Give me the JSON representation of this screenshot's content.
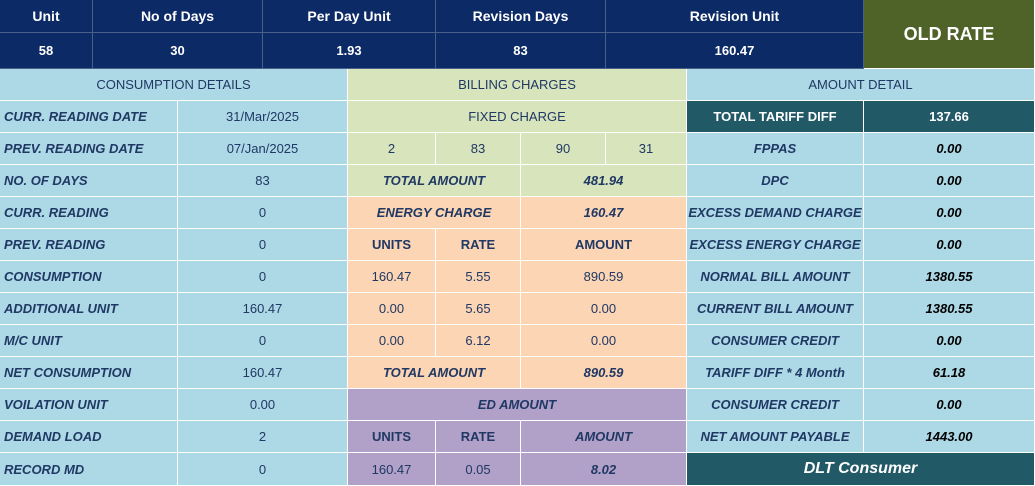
{
  "header": {
    "unit_label": "Unit",
    "no_of_days_label": "No of Days",
    "per_day_unit_label": "Per Day Unit",
    "revision_days_label": "Revision Days",
    "revision_unit_label": "Revision Unit",
    "unit": "58",
    "no_of_days": "30",
    "per_day_unit": "1.93",
    "revision_days": "83",
    "revision_unit": "160.47",
    "old_rate": "OLD RATE"
  },
  "consumption": {
    "title": "CONSUMPTION DETAILS",
    "rows": [
      {
        "label": "CURR. READING DATE",
        "value": "31/Mar/2025"
      },
      {
        "label": "PREV. READING DATE",
        "value": "07/Jan/2025"
      },
      {
        "label": "NO. OF DAYS",
        "value": "83"
      },
      {
        "label": "CURR. READING",
        "value": "0"
      },
      {
        "label": "PREV. READING",
        "value": "0"
      },
      {
        "label": "CONSUMPTION",
        "value": "0"
      },
      {
        "label": "ADDITIONAL UNIT",
        "value": "160.47"
      },
      {
        "label": "M/C UNIT",
        "value": "0"
      },
      {
        "label": "NET CONSUMPTION",
        "value": "160.47"
      },
      {
        "label": "VOILATION UNIT",
        "value": "0.00"
      },
      {
        "label": "DEMAND LOAD",
        "value": "2"
      },
      {
        "label": "RECORD MD",
        "value": "0"
      }
    ]
  },
  "billing": {
    "title": "BILLING CHARGES",
    "fixed_charge_label": "FIXED CHARGE",
    "fixed_values": [
      "2",
      "83",
      "90",
      "31"
    ],
    "fixed_total_label": "TOTAL AMOUNT",
    "fixed_total": "481.94",
    "energy_charge_label": "ENERGY CHARGE",
    "energy_charge": "160.47",
    "col_units": "UNITS",
    "col_rate": "RATE",
    "col_amount": "AMOUNT",
    "energy_rows": [
      {
        "units": "160.47",
        "rate": "5.55",
        "amount": "890.59"
      },
      {
        "units": "0.00",
        "rate": "5.65",
        "amount": "0.00"
      },
      {
        "units": "0.00",
        "rate": "6.12",
        "amount": "0.00"
      }
    ],
    "energy_total_label": "TOTAL AMOUNT",
    "energy_total": "890.59",
    "ed_label": "ED AMOUNT",
    "ed_units": "160.47",
    "ed_rate": "0.05",
    "ed_amount": "8.02"
  },
  "amount": {
    "title": "AMOUNT DETAIL",
    "rows": [
      {
        "label": "TOTAL TARIFF DIFF",
        "value": "137.66"
      },
      {
        "label": "FPPAS",
        "value": "0.00"
      },
      {
        "label": "DPC",
        "value": "0.00"
      },
      {
        "label": "EXCESS DEMAND CHARGE",
        "value": "0.00"
      },
      {
        "label": "EXCESS ENERGY CHARGE",
        "value": "0.00"
      },
      {
        "label": "NORMAL BILL AMOUNT",
        "value": "1380.55"
      },
      {
        "label": "CURRENT BILL AMOUNT",
        "value": "1380.55"
      },
      {
        "label": "CONSUMER CREDIT",
        "value": "0.00"
      },
      {
        "label": "TARIFF DIFF * 4 Month",
        "value": "61.18"
      },
      {
        "label": "CONSUMER CREDIT",
        "value": "0.00"
      },
      {
        "label": "NET AMOUNT PAYABLE",
        "value": "1443.00"
      }
    ],
    "consumer_type": "DLT Consumer"
  },
  "colors": {
    "header_navy": "#0c2a66",
    "olive": "#4f6228",
    "light_blue": "#add8e6",
    "green": "#d8e4bc",
    "peach": "#fcd5b4",
    "purple": "#b1a0c7",
    "teal": "#215967"
  }
}
